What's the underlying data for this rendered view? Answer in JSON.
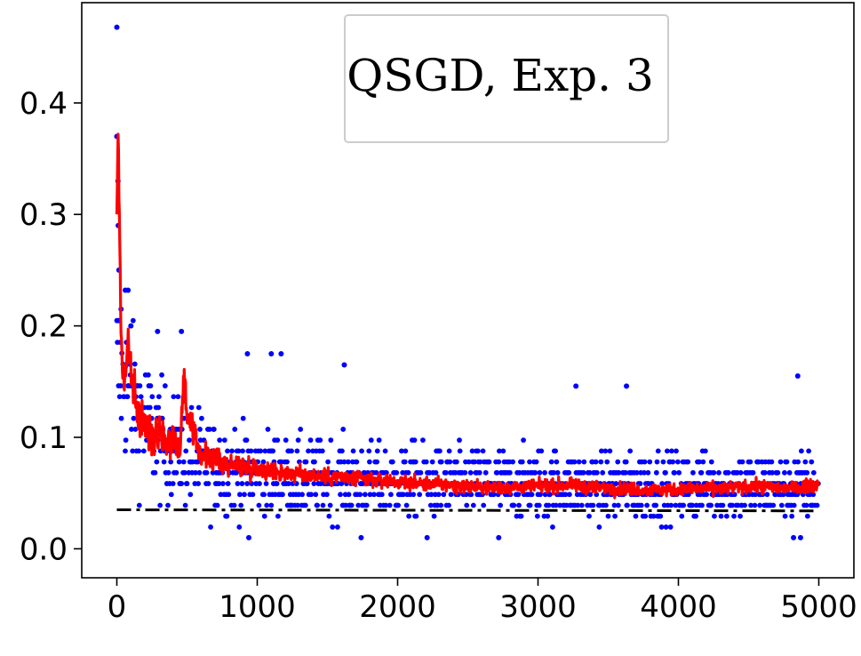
{
  "chart_data": {
    "type": "scatter",
    "xlim": [
      -250,
      5250
    ],
    "ylim": [
      -0.026,
      0.49
    ],
    "x_ticks": [
      0,
      1000,
      2000,
      3000,
      4000,
      5000
    ],
    "x_tick_labels": [
      "0",
      "1000",
      "2000",
      "3000",
      "4000",
      "5000"
    ],
    "y_ticks": [
      0.0,
      0.1,
      0.2,
      0.3,
      0.4
    ],
    "y_tick_labels": [
      "0.0",
      "0.1",
      "0.2",
      "0.3",
      "0.4"
    ],
    "legend": {
      "text": "QSGD, Exp. 3",
      "position": "top-center"
    },
    "grid": false,
    "colors": {
      "points": "#0000ff",
      "line": "#ff0000",
      "baseline": "#000000"
    },
    "series": [
      {
        "kind": "scatter",
        "note_points": "quantized samples on levels of ~0.0097; dense band between ~0.03 and ~0.16",
        "level_step": 0.00975,
        "outliers": [
          [
            0,
            0.468
          ],
          [
            0,
            0.37
          ],
          [
            8,
            0.33
          ],
          [
            10,
            0.29
          ],
          [
            15,
            0.25
          ],
          [
            30,
            0.215
          ],
          [
            60,
            0.232
          ],
          [
            80,
            0.232
          ],
          [
            100,
            0.2
          ],
          [
            290,
            0.195
          ],
          [
            460,
            0.195
          ],
          [
            930,
            0.175
          ],
          [
            1100,
            0.175
          ],
          [
            1170,
            0.175
          ],
          [
            1620,
            0.165
          ],
          [
            3270,
            0.146
          ],
          [
            3630,
            0.146
          ],
          [
            4850,
            0.155
          ],
          [
            940,
            0.01
          ],
          [
            1740,
            0.01
          ],
          [
            2210,
            0.01
          ],
          [
            2720,
            0.01
          ],
          [
            4820,
            0.01
          ],
          [
            4870,
            0.01
          ]
        ]
      },
      {
        "kind": "line",
        "note": "running average, decays from ~0.38 to ~0.055",
        "points": [
          [
            0,
            0.3
          ],
          [
            10,
            0.38
          ],
          [
            20,
            0.27
          ],
          [
            30,
            0.2
          ],
          [
            40,
            0.16
          ],
          [
            60,
            0.15
          ],
          [
            80,
            0.19
          ],
          [
            100,
            0.16
          ],
          [
            130,
            0.13
          ],
          [
            150,
            0.12
          ],
          [
            200,
            0.11
          ],
          [
            250,
            0.1
          ],
          [
            300,
            0.11
          ],
          [
            350,
            0.095
          ],
          [
            400,
            0.1
          ],
          [
            450,
            0.09
          ],
          [
            480,
            0.16
          ],
          [
            500,
            0.12
          ],
          [
            550,
            0.1
          ],
          [
            600,
            0.085
          ],
          [
            700,
            0.08
          ],
          [
            800,
            0.075
          ],
          [
            900,
            0.074
          ],
          [
            1000,
            0.072
          ],
          [
            1200,
            0.068
          ],
          [
            1400,
            0.066
          ],
          [
            1600,
            0.064
          ],
          [
            1800,
            0.062
          ],
          [
            2000,
            0.06
          ],
          [
            2200,
            0.058
          ],
          [
            2400,
            0.057
          ],
          [
            2600,
            0.055
          ],
          [
            2800,
            0.055
          ],
          [
            3000,
            0.056
          ],
          [
            3200,
            0.057
          ],
          [
            3400,
            0.055
          ],
          [
            3600,
            0.054
          ],
          [
            3800,
            0.053
          ],
          [
            4000,
            0.053
          ],
          [
            4200,
            0.054
          ],
          [
            4400,
            0.055
          ],
          [
            4600,
            0.056
          ],
          [
            4800,
            0.054
          ],
          [
            5000,
            0.058
          ]
        ]
      },
      {
        "kind": "dashdot-line",
        "points": [
          [
            0,
            0.035
          ],
          [
            5000,
            0.034
          ]
        ]
      }
    ]
  }
}
